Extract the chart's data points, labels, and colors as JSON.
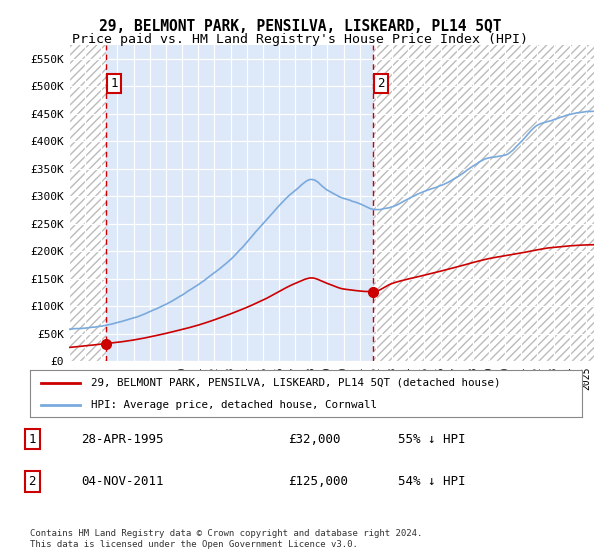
{
  "title": "29, BELMONT PARK, PENSILVA, LISKEARD, PL14 5QT",
  "subtitle": "Price paid vs. HM Land Registry's House Price Index (HPI)",
  "ylim": [
    0,
    575000
  ],
  "yticks": [
    0,
    50000,
    100000,
    150000,
    200000,
    250000,
    300000,
    350000,
    400000,
    450000,
    500000,
    550000
  ],
  "ytick_labels": [
    "£0",
    "£50K",
    "£100K",
    "£150K",
    "£200K",
    "£250K",
    "£300K",
    "£350K",
    "£400K",
    "£450K",
    "£500K",
    "£550K"
  ],
  "sale1_date": 1995.32,
  "sale1_price": 32000,
  "sale1_label": "1",
  "sale2_date": 2011.84,
  "sale2_price": 125000,
  "sale2_label": "2",
  "hpi_color": "#7aaadd",
  "price_color": "#cc0000",
  "dashed_color": "#cc0000",
  "background_chart": "#dde8f8",
  "hatch_edgecolor": "#bbbbbb",
  "legend_label1": "29, BELMONT PARK, PENSILVA, LISKEARD, PL14 5QT (detached house)",
  "legend_label2": "HPI: Average price, detached house, Cornwall",
  "table_row1": [
    "1",
    "28-APR-1995",
    "£32,000",
    "55% ↓ HPI"
  ],
  "table_row2": [
    "2",
    "04-NOV-2011",
    "£125,000",
    "54% ↓ HPI"
  ],
  "footnote": "Contains HM Land Registry data © Crown copyright and database right 2024.\nThis data is licensed under the Open Government Licence v3.0.",
  "xmin": 1993.0,
  "xmax": 2025.5,
  "title_fontsize": 10.5,
  "subtitle_fontsize": 9.5,
  "hpi_knots_x": [
    1993,
    1995,
    1997,
    1999,
    2001,
    2003,
    2005,
    2007,
    2008,
    2009,
    2010,
    2011,
    2012,
    2013,
    2014,
    2015,
    2016,
    2017,
    2018,
    2019,
    2020,
    2021,
    2022,
    2023,
    2024,
    2025.5
  ],
  "hpi_knots_y": [
    58000,
    65000,
    80000,
    105000,
    140000,
    185000,
    250000,
    310000,
    330000,
    310000,
    295000,
    285000,
    275000,
    280000,
    295000,
    310000,
    320000,
    335000,
    355000,
    370000,
    375000,
    400000,
    430000,
    440000,
    450000,
    455000
  ],
  "price_knots_x": [
    1993,
    1995.32,
    1997,
    1999,
    2001,
    2003,
    2005,
    2007,
    2008,
    2009,
    2010,
    2011.84,
    2013,
    2015,
    2017,
    2019,
    2021,
    2023,
    2025.5
  ],
  "price_knots_y": [
    25000,
    32000,
    38000,
    50000,
    65000,
    85000,
    110000,
    140000,
    150000,
    140000,
    130000,
    125000,
    140000,
    155000,
    170000,
    185000,
    195000,
    205000,
    210000
  ]
}
